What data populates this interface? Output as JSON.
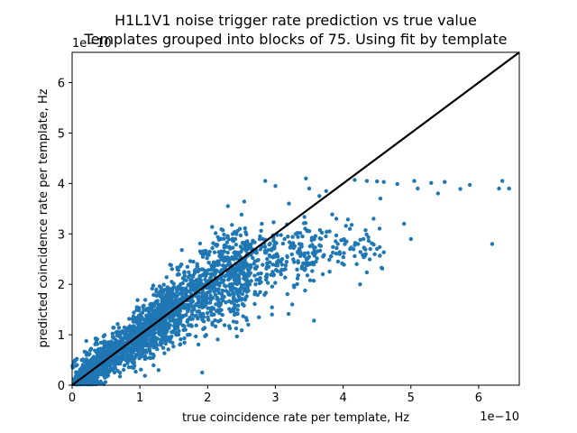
{
  "chart_data": {
    "type": "scatter",
    "title": "H1L1V1 noise trigger rate prediction vs true value",
    "subtitle": "Templates grouped into blocks of 75. Using fit by template",
    "xlabel": "true coincidence rate per template, Hz",
    "ylabel": "predicted coincidence rate per template, Hz",
    "x_offset_label": "1e−10",
    "y_offset_label": "1e−10",
    "xlim": [
      0,
      6.6
    ],
    "ylim": [
      0,
      6.6
    ],
    "x_ticks": [
      0,
      1,
      2,
      3,
      4,
      5,
      6
    ],
    "y_ticks": [
      0,
      1,
      2,
      3,
      4,
      5,
      6
    ],
    "x_tick_labels": [
      "0",
      "1",
      "2",
      "3",
      "4",
      "5",
      "6"
    ],
    "y_tick_labels": [
      "0",
      "1",
      "2",
      "3",
      "4",
      "5",
      "6"
    ],
    "grid": false,
    "point_color": "#1f77b4",
    "line_color": "#000000",
    "reference_line": {
      "name": "y = x",
      "x": [
        0,
        6.6
      ],
      "y": [
        0,
        6.6
      ]
    },
    "series": [
      {
        "name": "templates",
        "notes": "values in units of 1e-10 Hz; ~2500 points, dense cluster along y=x up to ~2.5, predicted values saturate near 4.0",
        "points": [
          [
            4.17,
            4.07
          ],
          [
            4.35,
            4.05
          ],
          [
            4.5,
            4.04
          ],
          [
            4.6,
            4.03
          ],
          [
            4.8,
            3.99
          ],
          [
            5.05,
            4.05
          ],
          [
            5.3,
            4.01
          ],
          [
            5.5,
            4.03
          ],
          [
            5.87,
            3.97
          ],
          [
            6.35,
            4.05
          ],
          [
            6.45,
            3.9
          ],
          [
            6.3,
            3.9
          ],
          [
            5.73,
            3.89
          ],
          [
            5.4,
            3.8
          ],
          [
            5.1,
            3.9
          ],
          [
            4.55,
            3.7
          ],
          [
            4.45,
            3.3
          ],
          [
            4.9,
            3.2
          ],
          [
            5.0,
            2.9
          ],
          [
            6.2,
            2.8
          ],
          [
            4.1,
            3.1
          ],
          [
            4.3,
            2.9
          ],
          [
            4.4,
            2.7
          ],
          [
            3.9,
            3.3
          ],
          [
            3.8,
            3.05
          ],
          [
            3.57,
            1.28
          ],
          [
            2.45,
            1.58
          ],
          [
            1.92,
            0.25
          ],
          [
            4.2,
            2.4
          ],
          [
            3.7,
            2.2
          ],
          [
            3.95,
            2.6
          ],
          [
            3.4,
            2.95
          ],
          [
            3.1,
            2.5
          ],
          [
            2.6,
            1.2
          ],
          [
            2.3,
            3.55
          ],
          [
            2.5,
            3.38
          ],
          [
            2.8,
            3.2
          ],
          [
            3.2,
            3.6
          ],
          [
            3.5,
            3.9
          ],
          [
            3.3,
            3.0
          ],
          [
            3.6,
            2.45
          ],
          [
            3.8,
            2.25
          ],
          [
            4.05,
            2.85
          ],
          [
            4.25,
            2.0
          ],
          [
            3.25,
            1.6
          ],
          [
            2.95,
            1.4
          ],
          [
            2.7,
            1.85
          ],
          [
            2.55,
            2.4
          ],
          [
            2.2,
            2.9
          ],
          [
            1.95,
            2.6
          ],
          [
            2.85,
            4.05
          ],
          [
            3.0,
            3.95
          ],
          [
            3.45,
            4.1
          ],
          [
            3.65,
            3.75
          ],
          [
            3.75,
            3.85
          ]
        ]
      }
    ]
  }
}
